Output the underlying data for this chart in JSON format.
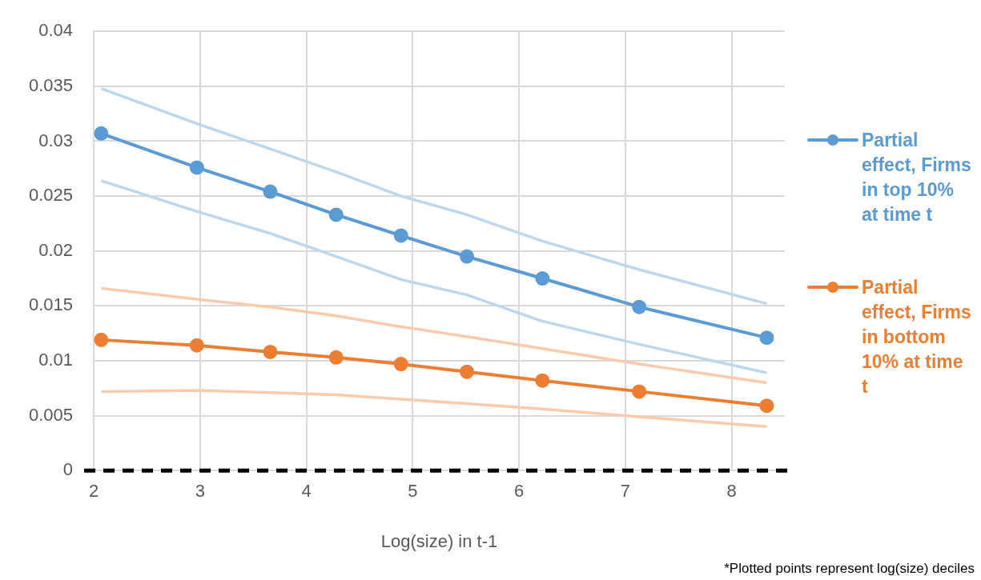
{
  "chart_data": {
    "type": "line",
    "xlabel": "Log(size) in t-1",
    "annotations": [
      "*Plotted points represent log(size) deciles"
    ],
    "xlim": [
      2,
      8.5
    ],
    "xticks": [
      2,
      3,
      4,
      5,
      6,
      7,
      8
    ],
    "ylim": [
      0,
      0.04
    ],
    "yticks": [
      0,
      0.005,
      0.01,
      0.015,
      0.02,
      0.025,
      0.03,
      0.035,
      0.04
    ],
    "grid": true,
    "legend": "right",
    "marker": "circle",
    "line_style": "solid",
    "ref_lines": [
      {
        "axis": "y",
        "value": 0,
        "color": "#000000",
        "line_style": "dashed"
      }
    ],
    "series": [
      {
        "color": "#bdd7ee",
        "marker": "none",
        "x": [
          2.07,
          2.97,
          3.66,
          4.28,
          4.89,
          5.51,
          6.22,
          7.13,
          8.33
        ],
        "values": [
          0.0348,
          0.0316,
          0.0293,
          0.0272,
          0.025,
          0.0233,
          0.0209,
          0.0183,
          0.0152
        ]
      },
      {
        "color": "#bdd7ee",
        "marker": "none",
        "x": [
          2.07,
          2.97,
          3.66,
          4.28,
          4.89,
          5.51,
          6.22,
          7.13,
          8.33
        ],
        "values": [
          0.0264,
          0.0236,
          0.0216,
          0.0195,
          0.0174,
          0.016,
          0.0136,
          0.0115,
          0.0089
        ]
      },
      {
        "color": "#f8cbad",
        "marker": "none",
        "x": [
          2.07,
          2.97,
          3.66,
          4.28,
          4.89,
          5.51,
          6.22,
          7.13,
          8.33
        ],
        "values": [
          0.0166,
          0.0156,
          0.0149,
          0.0141,
          0.0131,
          0.0122,
          0.0111,
          0.0097,
          0.008
        ]
      },
      {
        "color": "#f8cbad",
        "marker": "none",
        "x": [
          2.07,
          2.97,
          3.66,
          4.28,
          4.89,
          5.51,
          6.22,
          7.13,
          8.33
        ],
        "values": [
          0.0072,
          0.0073,
          0.0071,
          0.0069,
          0.0065,
          0.0061,
          0.0056,
          0.0049,
          0.004
        ]
      },
      {
        "name": "Partial effect, Firms in top 10% at time t",
        "color": "#5b9bd5",
        "x": [
          2.07,
          2.97,
          3.66,
          4.28,
          4.89,
          5.51,
          6.22,
          7.13,
          8.33
        ],
        "values": [
          0.0307,
          0.0276,
          0.0254,
          0.0233,
          0.0214,
          0.0195,
          0.0175,
          0.0149,
          0.0121
        ]
      },
      {
        "name": "Partial effect, Firms in bottom 10% at time t",
        "color": "#ed7d31",
        "x": [
          2.07,
          2.97,
          3.66,
          4.28,
          4.89,
          5.51,
          6.22,
          7.13,
          8.33
        ],
        "values": [
          0.0119,
          0.0114,
          0.0108,
          0.0103,
          0.0097,
          0.009,
          0.0082,
          0.0072,
          0.0059
        ]
      }
    ]
  }
}
